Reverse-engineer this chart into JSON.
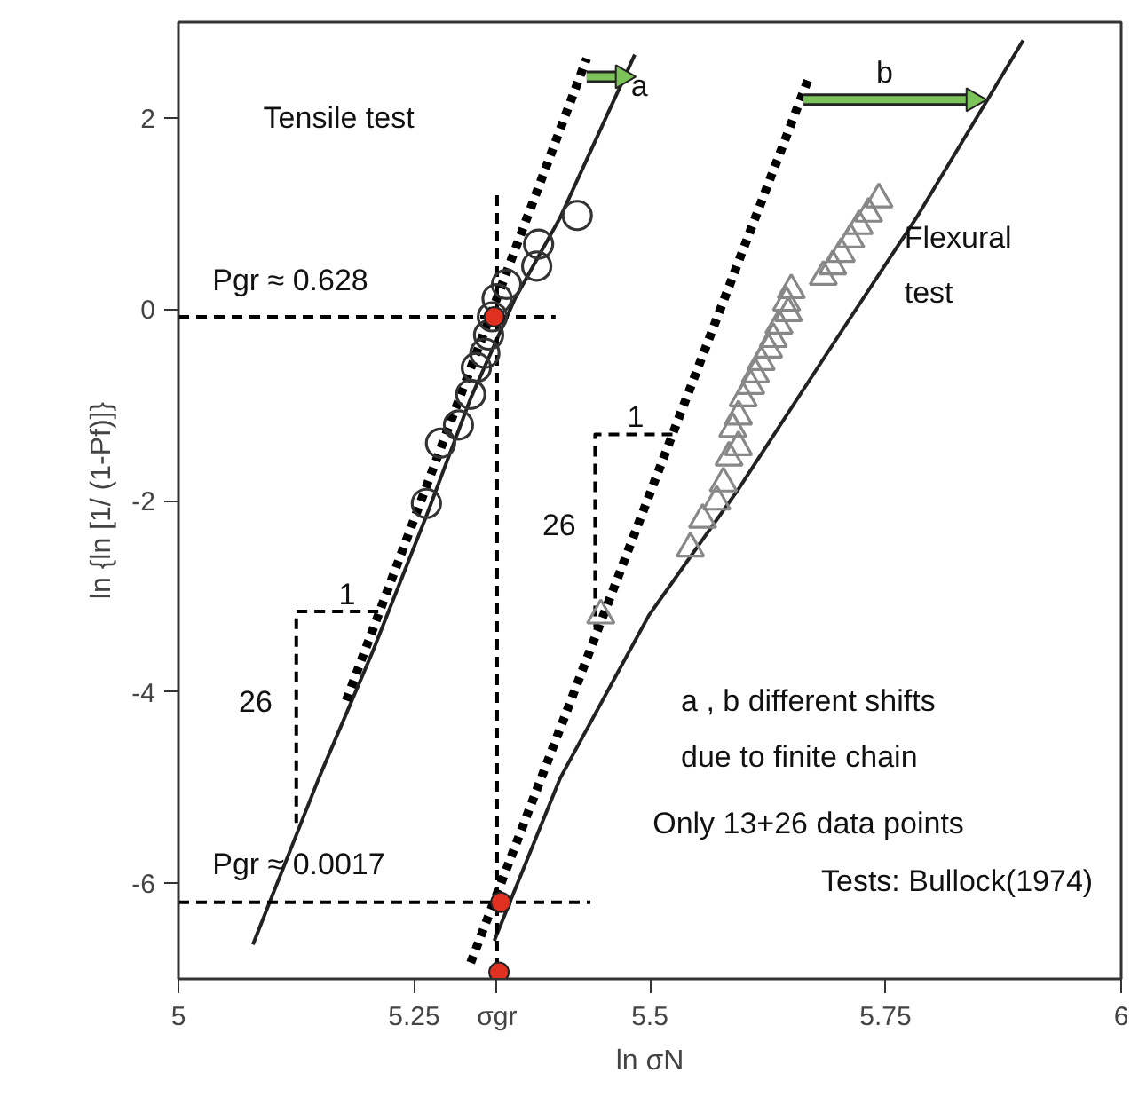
{
  "chart_data": {
    "type": "scatter",
    "xlabel": "ln σN",
    "ylabel": "ln {ln [1/ (1-Pf)]}",
    "xlim": [
      5,
      6
    ],
    "ylim": [
      -7,
      3
    ],
    "xticks": [
      5,
      5.25,
      {
        "value": 5.338,
        "label": "σgr"
      },
      5.5,
      5.75,
      6
    ],
    "yticks": [
      -6,
      -4,
      -2,
      0,
      2
    ],
    "grid": false,
    "series": [
      {
        "marker": "circle",
        "color": "#333333",
        "x": [
          5.423,
          5.382,
          5.38,
          5.348,
          5.338,
          5.333,
          5.329,
          5.325,
          5.316,
          5.31,
          5.297,
          5.278,
          5.263
        ],
        "values": [
          0.98,
          0.68,
          0.45,
          0.26,
          0.11,
          -0.08,
          -0.27,
          -0.46,
          -0.61,
          -0.89,
          -1.21,
          -1.4,
          -2.03
        ]
      },
      {
        "marker": "triangle",
        "color": "#888888",
        "x": [
          5.743,
          5.732,
          5.722,
          5.713,
          5.703,
          5.694,
          5.684,
          5.65,
          5.645,
          5.647,
          5.637,
          5.631,
          5.626,
          5.618,
          5.612,
          5.607,
          5.599,
          5.594,
          5.588,
          5.594,
          5.584,
          5.578,
          5.571,
          5.556,
          5.543,
          5.448
        ],
        "values": [
          1.15,
          1.0,
          0.87,
          0.73,
          0.58,
          0.45,
          0.34,
          0.2,
          0.07,
          -0.04,
          -0.17,
          -0.31,
          -0.42,
          -0.55,
          -0.68,
          -0.8,
          -0.93,
          -1.12,
          -1.25,
          -1.44,
          -1.55,
          -1.82,
          -2.01,
          -2.2,
          -2.5,
          -3.2
        ]
      },
      {
        "type": "line",
        "line_style": "solid",
        "color": "#222222",
        "x": [
          5.079,
          5.149,
          5.206,
          5.263,
          5.31,
          5.357,
          5.405,
          5.484
        ],
        "values": [
          -6.64,
          -4.9,
          -3.58,
          -2.16,
          -0.93,
          0.11,
          0.96,
          2.66
        ]
      },
      {
        "type": "line",
        "line_style": "solid",
        "color": "#222222",
        "x": [
          5.335,
          5.405,
          5.499,
          5.594,
          5.688,
          5.783,
          5.896
        ],
        "values": [
          -6.6,
          -4.9,
          -3.2,
          -1.88,
          -0.46,
          0.96,
          2.81
        ]
      },
      {
        "type": "line",
        "line_style": "dotted",
        "color": "#000000",
        "x": [
          5.178,
          5.433
        ],
        "values": [
          -4.09,
          2.62
        ]
      },
      {
        "type": "line",
        "line_style": "dotted",
        "color": "#000000",
        "x": [
          5.31,
          5.669
        ],
        "values": [
          -6.83,
          2.43
        ]
      },
      {
        "type": "line",
        "line_style": "dashed",
        "color": "#000000",
        "x": [
          5.0,
          5.4
        ],
        "values": [
          -0.08,
          -0.08
        ]
      },
      {
        "type": "line",
        "line_style": "dashed",
        "color": "#000000",
        "x": [
          5.0,
          5.437
        ],
        "values": [
          -6.2,
          -6.2
        ]
      },
      {
        "type": "line",
        "line_style": "dashed",
        "color": "#000000",
        "x": [
          5.338,
          5.338
        ],
        "values": [
          1.19,
          -7.0
        ]
      },
      {
        "type": "line",
        "line_style": "dashed",
        "color": "#000000",
        "x": [
          5.212,
          5.125,
          5.125
        ],
        "values": [
          -3.16,
          -3.16,
          -5.37
        ]
      },
      {
        "type": "line",
        "line_style": "dashed",
        "color": "#000000",
        "x": [
          5.524,
          5.442,
          5.442
        ],
        "values": [
          -1.31,
          -1.31,
          -3.33
        ]
      },
      {
        "marker": "circle",
        "color": "#e03020",
        "x": [
          5.335,
          5.342,
          5.34
        ],
        "values": [
          -0.08,
          -6.2,
          -6.93
        ]
      },
      {
        "type": "line",
        "line_style": "solid",
        "marker": "triangle",
        "color": "#7cc35a",
        "x": [
          5.433,
          5.471
        ],
        "values": [
          2.43,
          2.43
        ]
      },
      {
        "type": "line",
        "line_style": "solid",
        "marker": "triangle",
        "color": "#7cc35a",
        "x": [
          5.663,
          5.843
        ],
        "values": [
          2.19,
          2.19
        ]
      }
    ],
    "annotations": [
      "Tensile test",
      "a",
      "b",
      "Flexural",
      "test",
      "Pgr ≈ 0.628",
      "Pgr ≈ 0.0017",
      "1",
      "26",
      "1",
      "26",
      "a , b  different shifts",
      "due to finite chain",
      "Only 13+26 data points",
      "Tests: Bullock(1974)"
    ]
  }
}
